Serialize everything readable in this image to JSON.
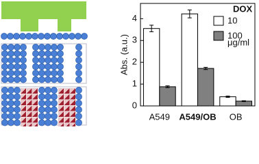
{
  "chart_data": {
    "type": "bar",
    "y_label": "Abs. (a.u.)",
    "categories": [
      "A549",
      "A549/OB",
      "OB"
    ],
    "category_bold": [
      false,
      true,
      false
    ],
    "series": [
      {
        "name": "10",
        "color": "#ffffff",
        "values": [
          3.55,
          4.22,
          0.42
        ],
        "errors": [
          0.15,
          0.18,
          0.03
        ]
      },
      {
        "name": "100",
        "color": "#808080",
        "values": [
          0.88,
          1.72,
          0.22
        ],
        "errors": [
          0.04,
          0.05,
          0.02
        ]
      }
    ],
    "legend_title": "DOX",
    "legend_note": "μg/ml",
    "legend_corner": "top-right",
    "ylim": [
      0,
      4.7
    ],
    "yticks": [
      0,
      1,
      2,
      3,
      4
    ]
  }
}
